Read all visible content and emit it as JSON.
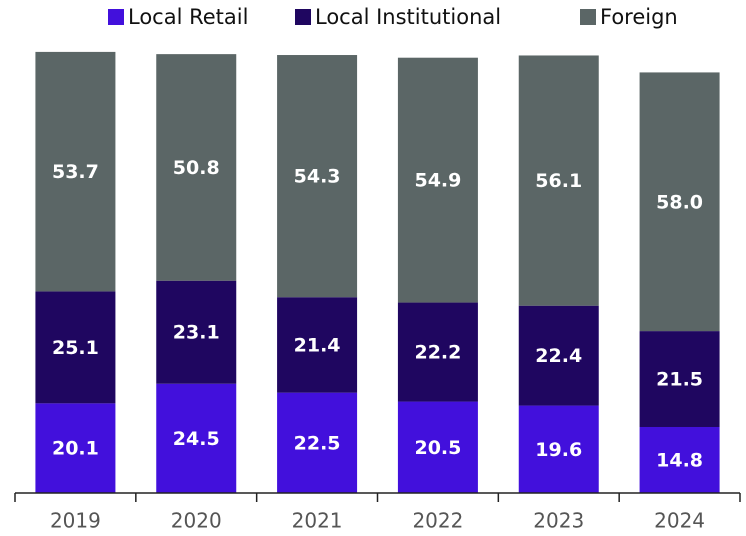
{
  "chart_data": {
    "type": "stacked_bar",
    "categories": [
      "2019",
      "2020",
      "2021",
      "2022",
      "2023",
      "2024"
    ],
    "series": [
      {
        "name": "Local Retail",
        "color": "#4210dc",
        "values": [
          20.1,
          24.5,
          22.5,
          20.5,
          19.6,
          14.8
        ],
        "value_labels": [
          "20.1",
          "24.5",
          "22.5",
          "20.5",
          "19.6",
          "14.8"
        ]
      },
      {
        "name": "Local Institutional",
        "color": "#1f0660",
        "values": [
          25.1,
          23.1,
          21.4,
          22.2,
          22.4,
          21.5
        ],
        "value_labels": [
          "25.1",
          "23.1",
          "21.4",
          "22.2",
          "22.4",
          "21.5"
        ]
      },
      {
        "name": "Foreign",
        "color": "#5b6666",
        "values": [
          53.7,
          50.8,
          54.3,
          54.9,
          56.1,
          58.0
        ],
        "value_labels": [
          "53.7",
          "50.8",
          "54.3",
          "54.9",
          "56.1",
          "58.0"
        ]
      }
    ],
    "ylim": [
      0,
      100
    ]
  }
}
